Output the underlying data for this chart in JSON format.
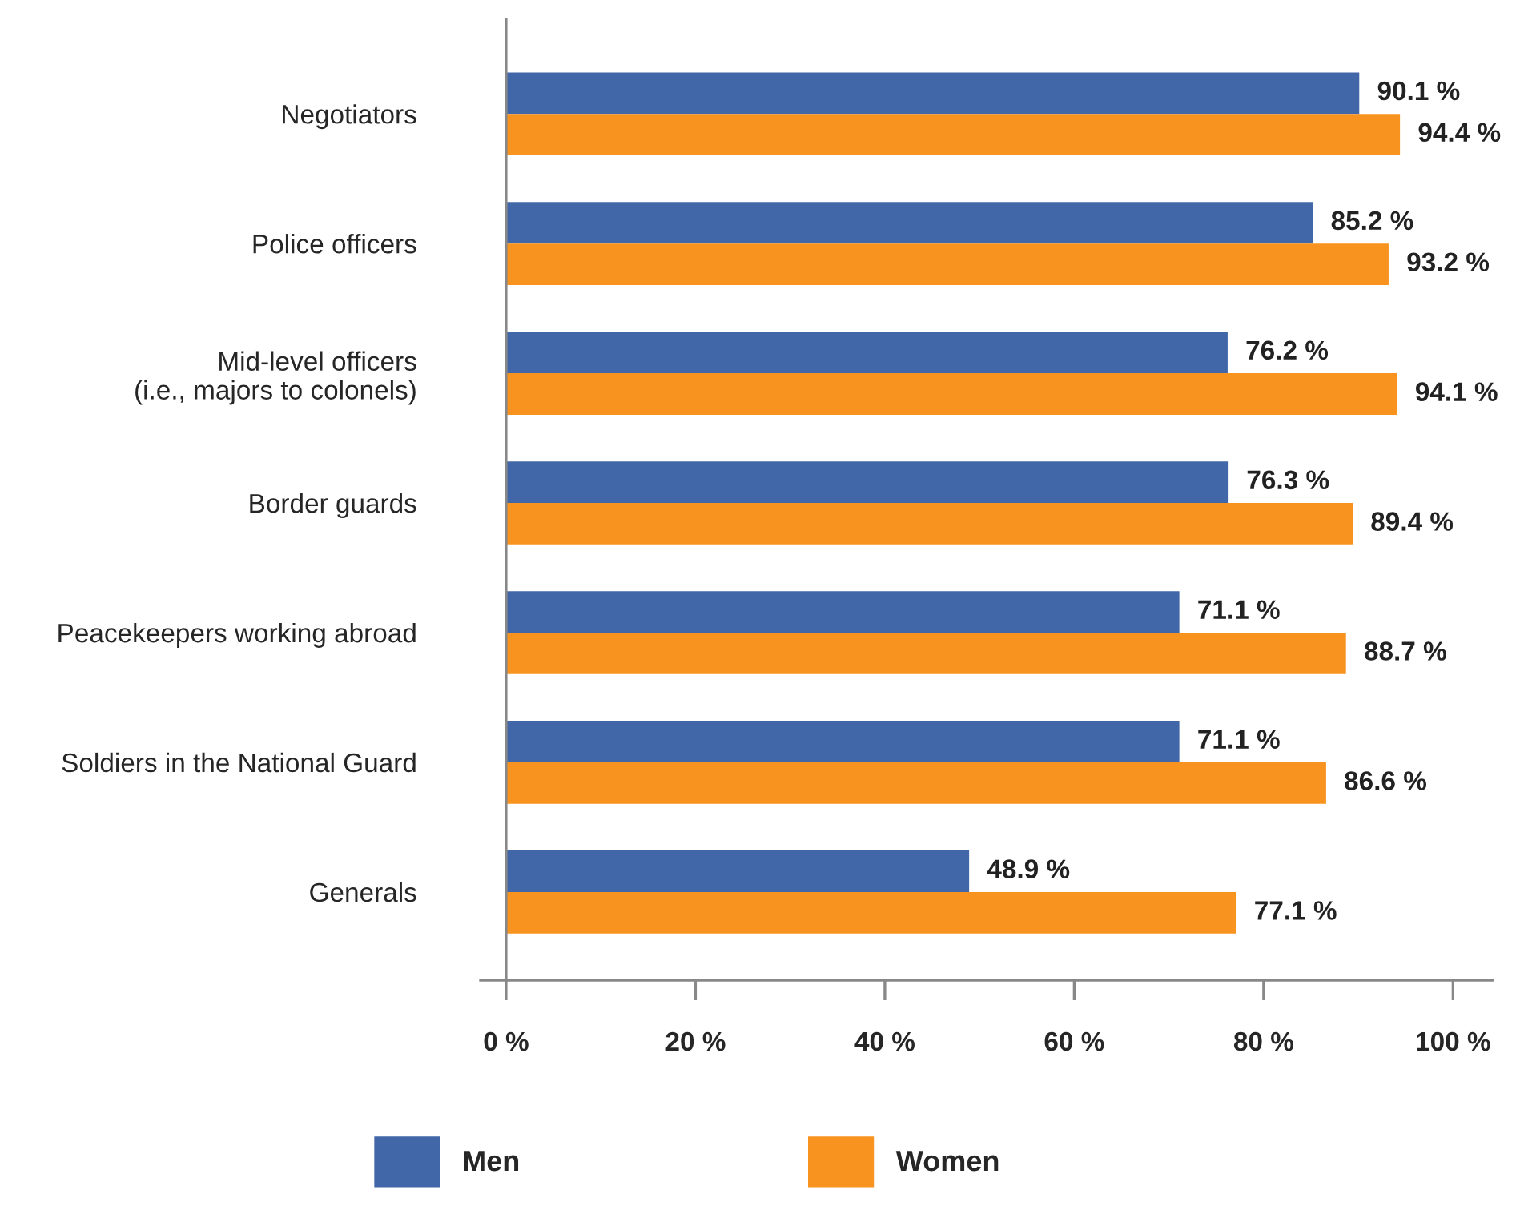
{
  "chart_data": {
    "type": "bar",
    "orientation": "horizontal",
    "categories": [
      "Negotiators",
      "Police officers",
      "Mid-level officers\n(i.e., majors to colonels)",
      "Border guards",
      "Peacekeepers working abroad",
      "Soldiers in the National Guard",
      "Generals"
    ],
    "series": [
      {
        "name": "Men",
        "color": "#4267a8",
        "values": [
          90.1,
          85.2,
          76.2,
          76.3,
          71.1,
          71.1,
          48.9
        ],
        "value_labels": [
          "90.1 %",
          "85.2 %",
          "76.2 %",
          "76.3 %",
          "71.1 %",
          "71.1 %",
          "48.9 %"
        ]
      },
      {
        "name": "Women",
        "color": "#f7931e",
        "values": [
          94.4,
          93.2,
          94.1,
          89.4,
          88.7,
          86.6,
          77.1
        ],
        "value_labels": [
          "94.4 %",
          "93.2 %",
          "94.1 %",
          "89.4 %",
          "88.7 %",
          "86.6 %",
          "77.1 %"
        ]
      }
    ],
    "xlim": [
      -2.7,
      104.2
    ],
    "xticks": [
      {
        "value": 0,
        "label": "0 %"
      },
      {
        "value": 20,
        "label": "20 %"
      },
      {
        "value": 40,
        "label": "40 %"
      },
      {
        "value": 60,
        "label": "60 %"
      },
      {
        "value": 80,
        "label": "80 %"
      },
      {
        "value": 100,
        "label": "100 %"
      }
    ],
    "legend": "bottom"
  }
}
